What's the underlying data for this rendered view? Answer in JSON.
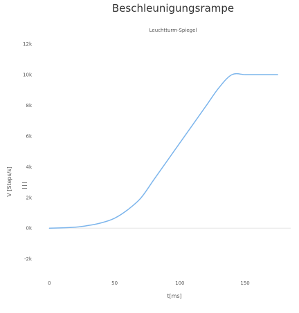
{
  "chart_data": {
    "type": "line",
    "title": "Beschleunigungsrampe",
    "subtitle": "Leuchtturm-Spiegel",
    "xlabel": "t[ms]",
    "ylabel": "V [Steps/s]",
    "xlim": [
      -5,
      185
    ],
    "ylim": [
      -2600,
      12700
    ],
    "x_ticks": [
      {
        "value": 0,
        "label": "0"
      },
      {
        "value": 50,
        "label": "50"
      },
      {
        "value": 100,
        "label": "100"
      },
      {
        "value": 150,
        "label": "150"
      }
    ],
    "y_ticks": [
      {
        "value": -2000,
        "label": "-2k"
      },
      {
        "value": 0,
        "label": "0k"
      },
      {
        "value": 2000,
        "label": "2k"
      },
      {
        "value": 4000,
        "label": "4k"
      },
      {
        "value": 6000,
        "label": "6k"
      },
      {
        "value": 8000,
        "label": "8k"
      },
      {
        "value": 10000,
        "label": "10k"
      },
      {
        "value": 12000,
        "label": "12k"
      }
    ],
    "series": [
      {
        "color": "#7cb5ec",
        "x": [
          0,
          10,
          20,
          30,
          40,
          50,
          60,
          70,
          80,
          90,
          100,
          110,
          120,
          130,
          140,
          150,
          160,
          175
        ],
        "y": [
          0,
          18,
          62,
          175,
          350,
          650,
          1200,
          1950,
          3150,
          4350,
          5550,
          6750,
          7950,
          9150,
          10000,
          10000,
          10000,
          10000
        ]
      }
    ],
    "grid": false,
    "zero_line": true,
    "legend": "none"
  },
  "colors": {
    "line": "#7cb5ec",
    "zero_line": "#e6e6e6",
    "text": "#333333"
  },
  "icons": {
    "menu": "hamburger-menu-icon"
  }
}
